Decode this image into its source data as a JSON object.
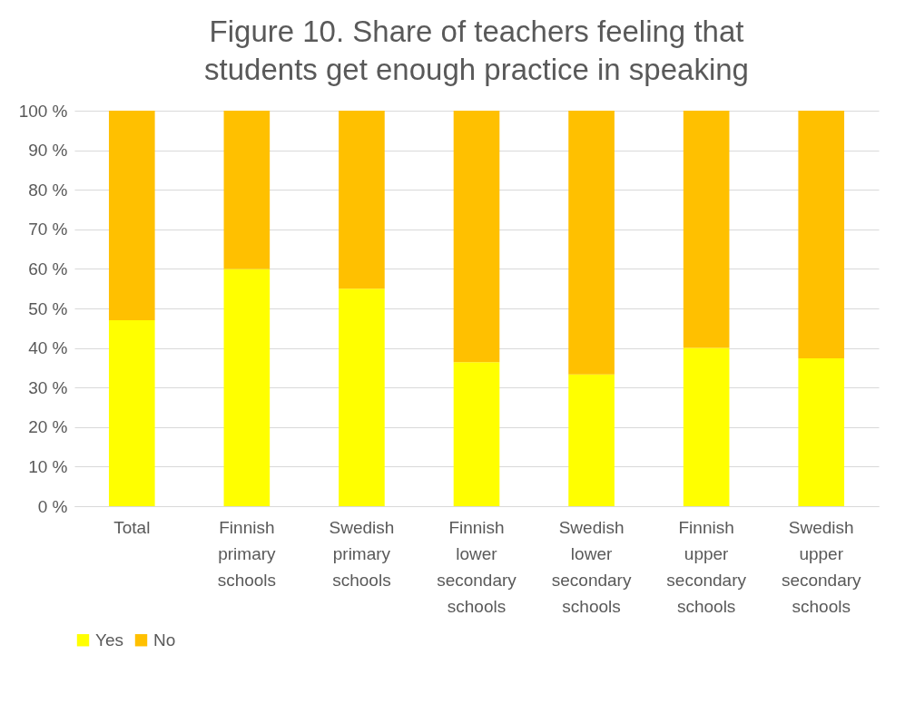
{
  "chart_data": {
    "type": "bar",
    "title": "Figure 10. Share of teachers feeling that students get enough practice in speaking",
    "stacked": true,
    "categories": [
      "Total",
      "Finnish primary schools",
      "Swedish primary schools",
      "Finnish lower secondary schools",
      "Swedish lower secondary schools",
      "Finnish upper secondary schools",
      "Swedish upper secondary schools"
    ],
    "series": [
      {
        "name": "Yes",
        "color": "#ffff00",
        "values": [
          47,
          60,
          55,
          36.4,
          33.3,
          40,
          37.4
        ]
      },
      {
        "name": "No",
        "color": "#ffc000",
        "values": [
          53,
          40,
          45,
          63.6,
          66.7,
          60,
          62.6
        ]
      }
    ],
    "ylim": [
      0,
      100
    ],
    "yticks": [
      {
        "value": 0,
        "label": "0 %"
      },
      {
        "value": 10,
        "label": "10 %"
      },
      {
        "value": 20,
        "label": "20 %"
      },
      {
        "value": 30,
        "label": "30 %"
      },
      {
        "value": 40,
        "label": "40 %"
      },
      {
        "value": 50,
        "label": "50 %"
      },
      {
        "value": 60,
        "label": "60 %"
      },
      {
        "value": 70,
        "label": "70 %"
      },
      {
        "value": 80,
        "label": "80 %"
      },
      {
        "value": 90,
        "label": "90 %"
      },
      {
        "value": 100,
        "label": "100 %"
      }
    ],
    "grid": "y",
    "legend": "bottom"
  }
}
